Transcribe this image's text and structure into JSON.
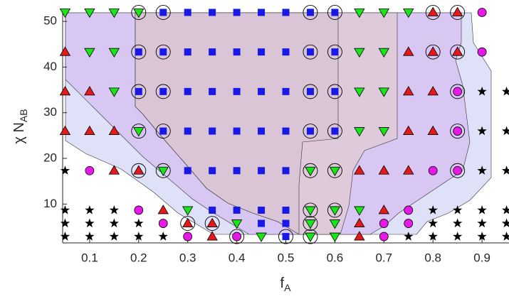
{
  "chart_data": {
    "type": "scatter",
    "xlabel": "f",
    "xlabel_sub": "A",
    "ylabel": "χ N",
    "ylabel_sub": "AB",
    "xlim": [
      0.045,
      0.955
    ],
    "ylim": [
      1.5,
      52.5
    ],
    "xticks": [
      0.1,
      0.2,
      0.3,
      0.4,
      0.5,
      0.6,
      0.7,
      0.8,
      0.9
    ],
    "yticks": [
      10,
      20,
      30,
      40,
      50
    ],
    "series": [
      {
        "marker": "star",
        "color": "#000000",
        "x": [
          0.9,
          0.95,
          0.9,
          0.95,
          0.05,
          0.9,
          0.95,
          0.05,
          0.1,
          0.15,
          0.8,
          0.85,
          0.9,
          0.95,
          0.05,
          0.1,
          0.15,
          0.2,
          0.8,
          0.85,
          0.9,
          0.95,
          0.05,
          0.1,
          0.15,
          0.2,
          0.25,
          0.75,
          0.8,
          0.85,
          0.9,
          0.95
        ],
        "values": [
          34.64,
          34.64,
          25.98,
          25.98,
          17.32,
          17.32,
          17.32,
          8.66,
          8.66,
          8.66,
          8.66,
          8.66,
          8.66,
          8.66,
          5.77,
          5.77,
          5.77,
          5.77,
          5.77,
          5.77,
          5.77,
          5.77,
          2.89,
          2.89,
          2.89,
          2.89,
          2.89,
          2.89,
          2.89,
          2.89,
          2.89,
          2.89
        ]
      },
      {
        "marker": "circle",
        "color": "#e619e6",
        "x": [
          0.9,
          0.9,
          0.85,
          0.85,
          0.1,
          0.8,
          0.85,
          0.2,
          0.75,
          0.25,
          0.7,
          0.75,
          0.3,
          0.4,
          0.7
        ],
        "values": [
          51.96,
          43.3,
          34.64,
          25.98,
          17.32,
          17.32,
          17.32,
          8.66,
          8.66,
          5.77,
          5.77,
          5.77,
          2.89,
          2.89,
          2.89
        ]
      },
      {
        "marker": "up",
        "color": "#e61919",
        "x": [
          0.8,
          0.85,
          0.05,
          0.75,
          0.8,
          0.85,
          0.05,
          0.1,
          0.75,
          0.8,
          0.05,
          0.1,
          0.15,
          0.75,
          0.8,
          0.15,
          0.2,
          0.65,
          0.7,
          0.75,
          0.25,
          0.7,
          0.3,
          0.35,
          0.65,
          0.35,
          0.65
        ],
        "values": [
          51.96,
          51.96,
          43.3,
          43.3,
          43.3,
          43.3,
          34.64,
          34.64,
          34.64,
          34.64,
          25.98,
          25.98,
          25.98,
          25.98,
          25.98,
          17.32,
          17.32,
          17.32,
          17.32,
          17.32,
          8.66,
          8.66,
          5.77,
          5.77,
          5.77,
          2.89,
          2.89
        ]
      },
      {
        "marker": "down",
        "color": "#19e619",
        "x": [
          0.05,
          0.1,
          0.15,
          0.2,
          0.65,
          0.7,
          0.75,
          0.1,
          0.15,
          0.65,
          0.7,
          0.15,
          0.65,
          0.7,
          0.2,
          0.65,
          0.7,
          0.25,
          0.55,
          0.6,
          0.3,
          0.55,
          0.6,
          0.65,
          0.4,
          0.55,
          0.6,
          0.45,
          0.55,
          0.6
        ],
        "values": [
          51.96,
          51.96,
          51.96,
          51.96,
          51.96,
          51.96,
          51.96,
          43.3,
          43.3,
          43.3,
          43.3,
          34.64,
          34.64,
          34.64,
          25.98,
          25.98,
          25.98,
          17.32,
          17.32,
          17.32,
          8.66,
          8.66,
          8.66,
          8.66,
          5.77,
          5.77,
          5.77,
          2.89,
          2.89,
          2.89
        ]
      },
      {
        "marker": "square",
        "color": "#1919e6",
        "x": [
          0.25,
          0.3,
          0.35,
          0.4,
          0.45,
          0.5,
          0.55,
          0.6,
          0.2,
          0.25,
          0.3,
          0.35,
          0.4,
          0.45,
          0.5,
          0.55,
          0.6,
          0.2,
          0.25,
          0.3,
          0.35,
          0.4,
          0.45,
          0.5,
          0.55,
          0.6,
          0.25,
          0.3,
          0.35,
          0.4,
          0.45,
          0.5,
          0.55,
          0.6,
          0.3,
          0.35,
          0.4,
          0.45,
          0.5,
          0.35,
          0.4,
          0.45,
          0.5,
          0.45,
          0.5,
          0.5
        ],
        "values": [
          51.96,
          51.96,
          51.96,
          51.96,
          51.96,
          51.96,
          51.96,
          51.96,
          43.3,
          43.3,
          43.3,
          43.3,
          43.3,
          43.3,
          43.3,
          43.3,
          43.3,
          34.64,
          34.64,
          34.64,
          34.64,
          34.64,
          34.64,
          34.64,
          34.64,
          34.64,
          25.98,
          25.98,
          25.98,
          25.98,
          25.98,
          25.98,
          25.98,
          25.98,
          17.32,
          17.32,
          17.32,
          17.32,
          17.32,
          8.66,
          8.66,
          8.66,
          8.66,
          5.77,
          5.77,
          2.89
        ]
      },
      {
        "marker": "ring",
        "color": "#000000",
        "x": [
          0.2,
          0.25,
          0.55,
          0.6,
          0.8,
          0.85,
          0.2,
          0.25,
          0.55,
          0.6,
          0.8,
          0.85,
          0.2,
          0.25,
          0.55,
          0.6,
          0.85,
          0.2,
          0.25,
          0.55,
          0.6,
          0.85,
          0.2,
          0.25,
          0.55,
          0.6,
          0.85,
          0.55,
          0.6,
          0.3,
          0.35,
          0.55,
          0.4,
          0.5,
          0.55
        ],
        "values": [
          51.96,
          51.96,
          51.96,
          51.96,
          51.96,
          51.96,
          43.3,
          43.3,
          43.3,
          43.3,
          43.3,
          43.3,
          34.64,
          34.64,
          34.64,
          34.64,
          34.64,
          25.98,
          25.98,
          25.98,
          25.98,
          25.98,
          17.32,
          17.32,
          17.32,
          17.32,
          17.32,
          8.66,
          8.66,
          5.77,
          5.77,
          5.77,
          2.89,
          2.89,
          2.89
        ]
      }
    ]
  }
}
